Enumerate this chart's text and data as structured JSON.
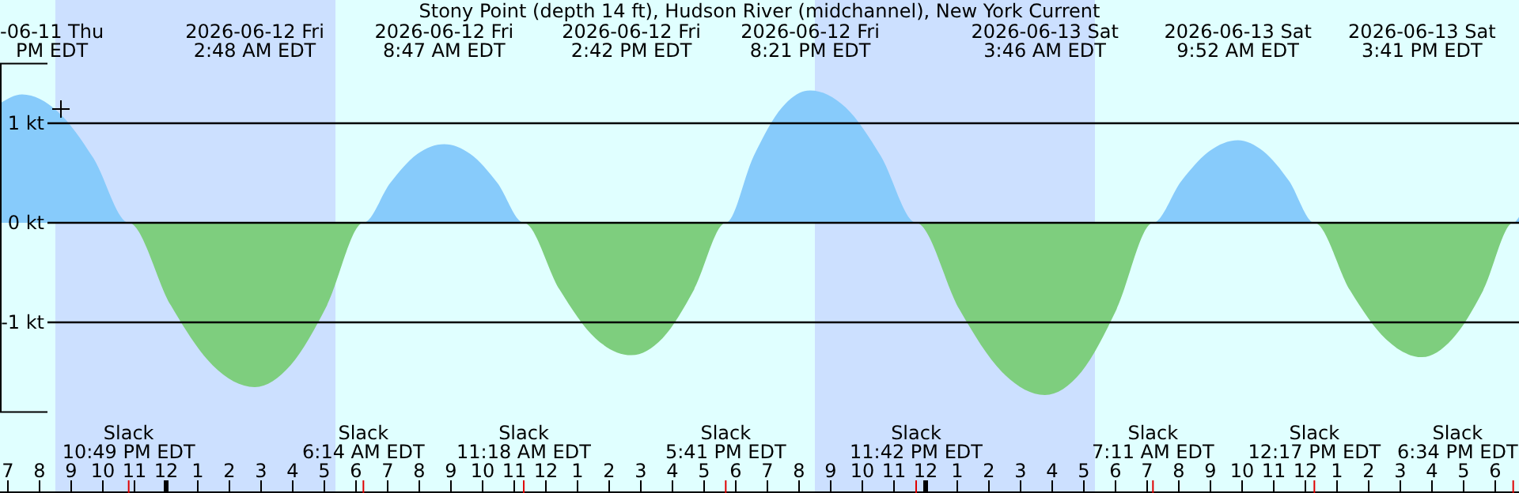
{
  "chart_data": {
    "type": "area",
    "title": "Stony Point (depth 14 ft), Hudson River (midchannel), New York Current",
    "x": [
      "2026-06-11T18:45",
      "2026-06-11T19:27",
      "2026-06-11T20:34",
      "2026-06-11T21:42",
      "2026-06-11T22:49",
      "2026-06-12T00:09",
      "2026-06-12T01:28",
      "2026-06-12T02:48",
      "2026-06-12T03:56",
      "2026-06-12T05:05",
      "2026-06-12T06:14",
      "2026-06-12T07:05",
      "2026-06-12T07:56",
      "2026-06-12T08:47",
      "2026-06-12T09:37",
      "2026-06-12T10:28",
      "2026-06-12T11:18",
      "2026-06-12T12:26",
      "2026-06-12T13:34",
      "2026-06-12T14:42",
      "2026-06-12T15:41",
      "2026-06-12T16:41",
      "2026-06-12T17:41",
      "2026-06-12T18:34",
      "2026-06-12T19:28",
      "2026-06-12T20:21",
      "2026-06-12T21:28",
      "2026-06-12T22:35",
      "2026-06-12T23:42",
      "2026-06-13T01:04",
      "2026-06-13T02:25",
      "2026-06-13T03:46",
      "2026-06-13T04:55",
      "2026-06-13T06:02",
      "2026-06-13T07:11",
      "2026-06-13T08:05",
      "2026-06-13T08:58",
      "2026-06-13T09:52",
      "2026-06-13T10:40",
      "2026-06-13T11:29",
      "2026-06-13T12:17",
      "2026-06-13T13:25",
      "2026-06-13T14:33",
      "2026-06-13T15:41",
      "2026-06-13T16:38",
      "2026-06-13T17:37",
      "2026-06-13T18:34",
      "2026-06-13T18:45"
    ],
    "series": [
      {
        "color": "#87cbfb",
        "values": [
          1.2,
          1.29,
          1.12,
          0.65,
          0,
          0,
          0,
          0,
          0,
          0,
          0,
          0.4,
          0.69,
          0.79,
          0.69,
          0.4,
          0,
          0,
          0,
          0,
          0,
          0,
          0,
          0.67,
          1.16,
          1.33,
          1.16,
          0.67,
          0,
          0,
          0,
          0,
          0,
          0,
          0,
          0.42,
          0.72,
          0.83,
          0.72,
          0.42,
          0,
          0,
          0,
          0,
          0,
          0,
          0,
          0.06
        ]
      },
      {
        "color": "#7ece7e",
        "values": [
          0,
          0,
          0,
          0,
          0,
          -0.83,
          -1.43,
          -1.65,
          -1.43,
          -0.83,
          0,
          0,
          0,
          0,
          0,
          0,
          0,
          -0.67,
          -1.16,
          -1.33,
          -1.16,
          -0.67,
          0,
          0,
          0,
          0,
          0,
          0,
          0,
          -0.87,
          -1.5,
          -1.73,
          -1.5,
          -0.87,
          0,
          0,
          0,
          0,
          0,
          0,
          0,
          -0.68,
          -1.17,
          -1.35,
          -1.17,
          -0.68,
          0,
          0
        ]
      }
    ],
    "xlim": [
      "2026-06-11T18:45",
      "2026-06-13T18:45"
    ],
    "xticks": [
      {
        "value": "2026-06-11T19:00",
        "label": "7"
      },
      {
        "value": "2026-06-11T20:00",
        "label": "8"
      },
      {
        "value": "2026-06-11T21:00",
        "label": "9"
      },
      {
        "value": "2026-06-11T22:00",
        "label": "10"
      },
      {
        "value": "2026-06-11T23:00",
        "label": "11"
      },
      {
        "value": "2026-06-12T00:00",
        "label": "12"
      },
      {
        "value": "2026-06-12T01:00",
        "label": "1"
      },
      {
        "value": "2026-06-12T02:00",
        "label": "2"
      },
      {
        "value": "2026-06-12T03:00",
        "label": "3"
      },
      {
        "value": "2026-06-12T04:00",
        "label": "4"
      },
      {
        "value": "2026-06-12T05:00",
        "label": "5"
      },
      {
        "value": "2026-06-12T06:00",
        "label": "6"
      },
      {
        "value": "2026-06-12T07:00",
        "label": "7"
      },
      {
        "value": "2026-06-12T08:00",
        "label": "8"
      },
      {
        "value": "2026-06-12T09:00",
        "label": "9"
      },
      {
        "value": "2026-06-12T10:00",
        "label": "10"
      },
      {
        "value": "2026-06-12T11:00",
        "label": "11"
      },
      {
        "value": "2026-06-12T12:00",
        "label": "12"
      },
      {
        "value": "2026-06-12T13:00",
        "label": "1"
      },
      {
        "value": "2026-06-12T14:00",
        "label": "2"
      },
      {
        "value": "2026-06-12T15:00",
        "label": "3"
      },
      {
        "value": "2026-06-12T16:00",
        "label": "4"
      },
      {
        "value": "2026-06-12T17:00",
        "label": "5"
      },
      {
        "value": "2026-06-12T18:00",
        "label": "6"
      },
      {
        "value": "2026-06-12T19:00",
        "label": "7"
      },
      {
        "value": "2026-06-12T20:00",
        "label": "8"
      },
      {
        "value": "2026-06-12T21:00",
        "label": "9"
      },
      {
        "value": "2026-06-12T22:00",
        "label": "10"
      },
      {
        "value": "2026-06-12T23:00",
        "label": "11"
      },
      {
        "value": "2026-06-13T00:00",
        "label": "12"
      },
      {
        "value": "2026-06-13T01:00",
        "label": "1"
      },
      {
        "value": "2026-06-13T02:00",
        "label": "2"
      },
      {
        "value": "2026-06-13T03:00",
        "label": "3"
      },
      {
        "value": "2026-06-13T04:00",
        "label": "4"
      },
      {
        "value": "2026-06-13T05:00",
        "label": "5"
      },
      {
        "value": "2026-06-13T06:00",
        "label": "6"
      },
      {
        "value": "2026-06-13T07:00",
        "label": "7"
      },
      {
        "value": "2026-06-13T08:00",
        "label": "8"
      },
      {
        "value": "2026-06-13T09:00",
        "label": "9"
      },
      {
        "value": "2026-06-13T10:00",
        "label": "10"
      },
      {
        "value": "2026-06-13T11:00",
        "label": "11"
      },
      {
        "value": "2026-06-13T12:00",
        "label": "12"
      },
      {
        "value": "2026-06-13T13:00",
        "label": "1"
      },
      {
        "value": "2026-06-13T14:00",
        "label": "2"
      },
      {
        "value": "2026-06-13T15:00",
        "label": "3"
      },
      {
        "value": "2026-06-13T16:00",
        "label": "4"
      },
      {
        "value": "2026-06-13T17:00",
        "label": "5"
      },
      {
        "value": "2026-06-13T18:00",
        "label": "6"
      }
    ],
    "ylim": [
      -1.9,
      1.6
    ],
    "yticks": [
      {
        "value": -1,
        "label": "-1 kt"
      },
      {
        "value": 0,
        "label": "0 kt"
      },
      {
        "value": 1,
        "label": "1 kt"
      }
    ],
    "grid": "y",
    "bands": [
      {
        "axis": "x",
        "from": "2026-06-11T20:30",
        "to": "2026-06-12T05:21",
        "color": "#cce0ff"
      },
      {
        "axis": "x",
        "from": "2026-06-12T20:30",
        "to": "2026-06-13T05:21",
        "color": "#cce0ff"
      }
    ],
    "annotations": [
      "-06-11 Thu\nPM EDT",
      "2026-06-12 Fri\n2:48 AM EDT",
      "2026-06-12 Fri\n8:47 AM EDT",
      "2026-06-12 Fri\n2:42 PM EDT",
      "2026-06-12 Fri\n8:21 PM EDT",
      "2026-06-13 Sat\n3:46 AM EDT",
      "2026-06-13 Sat\n9:52 AM EDT",
      "2026-06-13 Sat\n3:41 PM EDT",
      {
        "text": "Slack\n10:49 PM EDT",
        "x": "2026-06-11T22:49"
      },
      {
        "text": "Slack\n6:14 AM EDT",
        "x": "2026-06-12T06:14"
      },
      {
        "text": "Slack\n11:18 AM EDT",
        "x": "2026-06-12T11:18"
      },
      {
        "text": "Slack\n5:41 PM EDT",
        "x": "2026-06-12T17:41"
      },
      {
        "text": "Slack\n11:42 PM EDT",
        "x": "2026-06-12T23:42"
      },
      {
        "text": "Slack\n7:11 AM EDT",
        "x": "2026-06-13T07:11"
      },
      {
        "text": "Slack\n12:17 PM EDT",
        "x": "2026-06-13T12:17"
      },
      "Slack\n6:34 PM EDT"
    ]
  }
}
